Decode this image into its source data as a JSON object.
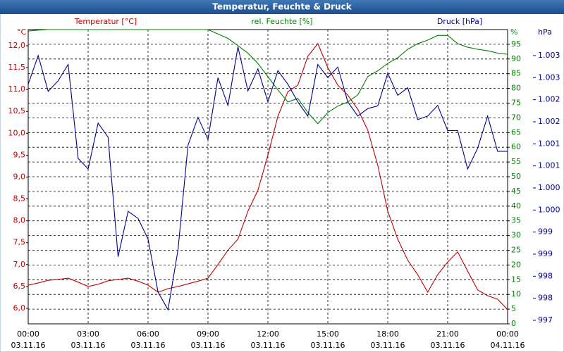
{
  "chart_data": {
    "type": "line",
    "title": "Temperatur, Feuchte & Druck",
    "y_unit": "°C",
    "y2_unit": "%",
    "y3_unit": "hPa",
    "x": [
      0,
      0.5,
      1,
      1.5,
      2,
      2.5,
      3,
      3.5,
      4,
      4.5,
      5,
      5.5,
      6,
      6.5,
      7,
      7.5,
      8,
      8.5,
      9,
      9.5,
      10,
      10.5,
      11,
      11.5,
      12,
      12.5,
      13,
      13.5,
      14,
      14.5,
      15,
      15.5,
      16,
      16.5,
      17,
      17.5,
      18,
      18.5,
      19,
      19.5,
      20,
      20.5,
      21,
      21.5,
      22,
      22.5,
      23,
      23.5,
      24
    ],
    "xlim": [
      0,
      24
    ],
    "xticks": [
      {
        "value": 0,
        "label": "00:00"
      },
      {
        "value": 3,
        "label": "03:00"
      },
      {
        "value": 6,
        "label": "06:00"
      },
      {
        "value": 9,
        "label": "09:00"
      },
      {
        "value": 12,
        "label": "12:00"
      },
      {
        "value": 15,
        "label": "15:00"
      },
      {
        "value": 18,
        "label": "18:00"
      },
      {
        "value": 21,
        "label": "21:00"
      },
      {
        "value": 24,
        "label": "00:00"
      }
    ],
    "xtick_dates": [
      "03.11.16",
      "03.11.16",
      "03.11.16",
      "03.11.16",
      "03.11.16",
      "03.11.16",
      "03.11.16",
      "03.11.16",
      "04.11.16"
    ],
    "ylim": [
      5.646,
      12.37
    ],
    "yticks": [
      {
        "value": 6,
        "label": "6,0"
      },
      {
        "value": 6.5,
        "label": "6,5"
      },
      {
        "value": 7,
        "label": "7,0"
      },
      {
        "value": 7.5,
        "label": "7,5"
      },
      {
        "value": 8,
        "label": "8,0"
      },
      {
        "value": 8.5,
        "label": "8,5"
      },
      {
        "value": 9,
        "label": "9,0"
      },
      {
        "value": 9.5,
        "label": "9,5"
      },
      {
        "value": 10,
        "label": "10,0"
      },
      {
        "value": 10.5,
        "label": "10,5"
      },
      {
        "value": 11,
        "label": "11,0"
      },
      {
        "value": 11.5,
        "label": "11,5"
      },
      {
        "value": 12,
        "label": "12,0"
      }
    ],
    "y2lim": [
      0,
      100
    ],
    "y2ticks": [
      0,
      5,
      10,
      15,
      20,
      25,
      30,
      35,
      40,
      45,
      50,
      55,
      60,
      65,
      70,
      75,
      80,
      85,
      90,
      95
    ],
    "y3lim": [
      996.92,
      1003.59
    ],
    "y3ticks": [
      {
        "value": 997,
        "label": "997"
      },
      {
        "value": 997.5,
        "label": "998"
      },
      {
        "value": 998,
        "label": "998"
      },
      {
        "value": 998.5,
        "label": "999"
      },
      {
        "value": 999,
        "label": "999"
      },
      {
        "value": 999.5,
        "label": "1.000"
      },
      {
        "value": 1000,
        "label": "1.000"
      },
      {
        "value": 1000.5,
        "label": "1.001"
      },
      {
        "value": 1001,
        "label": "1.001"
      },
      {
        "value": 1001.5,
        "label": "1.002"
      },
      {
        "value": 1002,
        "label": "1.002"
      },
      {
        "value": 1002.5,
        "label": "1.003"
      },
      {
        "value": 1003,
        "label": "1.003"
      }
    ],
    "grid": true,
    "series": [
      {
        "name": "Temperatur [°C]",
        "color": "#c00000",
        "axis": "y",
        "values": [
          6.53,
          6.58,
          6.64,
          6.66,
          6.69,
          6.6,
          6.5,
          6.55,
          6.63,
          6.66,
          6.69,
          6.62,
          6.53,
          6.37,
          6.45,
          6.5,
          6.56,
          6.62,
          6.69,
          7.0,
          7.33,
          7.58,
          8.22,
          8.7,
          9.5,
          10.39,
          10.95,
          11.1,
          11.76,
          12.05,
          11.5,
          11.1,
          10.87,
          10.55,
          10.07,
          9.27,
          8.22,
          7.58,
          7.1,
          6.77,
          6.37,
          6.77,
          7.06,
          7.29,
          6.85,
          6.42,
          6.29,
          6.21,
          5.97
        ]
      },
      {
        "name": "rel. Feuchte [%]",
        "color": "#008000",
        "axis": "y2",
        "values": [
          99.5,
          99.8,
          100,
          100,
          100,
          100,
          100,
          100,
          100,
          100,
          100,
          100,
          100,
          100,
          100,
          100,
          100,
          100,
          100,
          98.5,
          97,
          94.5,
          92,
          88.5,
          84,
          79.5,
          75.4,
          76.6,
          71.8,
          68,
          71.8,
          74,
          75.4,
          77.8,
          84,
          86,
          88.5,
          90.4,
          93.3,
          95.2,
          96.4,
          98,
          98,
          95.2,
          94,
          93.3,
          92.8,
          92,
          91.6
        ]
      },
      {
        "name": "Druck [hPa]",
        "color": "#00008b",
        "axis": "y3",
        "values": [
          1002.35,
          1003,
          1002.19,
          1002.43,
          1002.8,
          1000.67,
          1000.43,
          1001.47,
          1001.15,
          998.44,
          999.47,
          999.31,
          998.84,
          997.64,
          997.24,
          998.6,
          1000.97,
          1001.6,
          1001.1,
          1002.5,
          1001.87,
          1003.2,
          1002.2,
          1002.7,
          1001.95,
          1002.66,
          1002.35,
          1001.95,
          1001.63,
          1002.8,
          1002.5,
          1002.74,
          1001.95,
          1001.63,
          1001.8,
          1001.86,
          1002.6,
          1002.1,
          1002.27,
          1001.55,
          1001.63,
          1001.87,
          1001.3,
          1001.3,
          1000.43,
          1000.9,
          1001.63,
          1000.83,
          1000.83
        ]
      }
    ]
  }
}
